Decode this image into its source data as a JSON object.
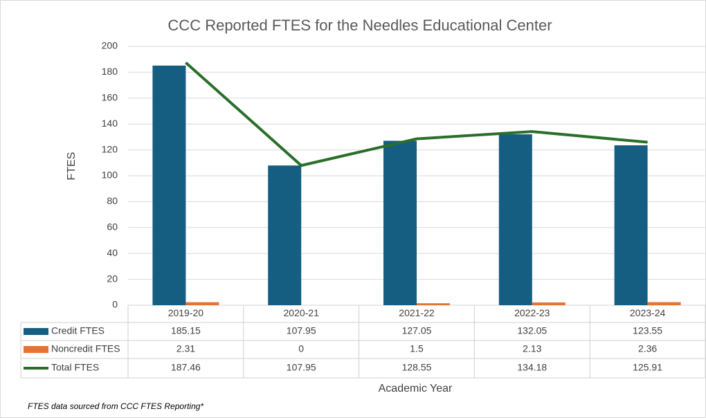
{
  "chart_data": {
    "type": "bar",
    "title": "CCC Reported FTES for the Needles Educational Center",
    "x_label": "Academic Year",
    "y_label": "FTES",
    "footnote": "FTES data sourced from CCC FTES Reporting*",
    "categories": [
      "2019-20",
      "2020-21",
      "2021-22",
      "2022-23",
      "2023-24"
    ],
    "series": [
      {
        "name": "Credit FTES",
        "color": "#155e82",
        "type": "bar",
        "values": [
          185.15,
          107.95,
          127.05,
          132.05,
          123.55
        ]
      },
      {
        "name": "Noncredit FTES",
        "color": "#e97132",
        "type": "bar",
        "values": [
          2.31,
          0,
          1.5,
          2.13,
          2.36
        ]
      },
      {
        "name": "Total FTES",
        "color": "#2a6e2a",
        "type": "line",
        "values": [
          187.46,
          107.95,
          128.55,
          134.18,
          125.91
        ]
      }
    ],
    "ylim": [
      0,
      200
    ],
    "yticks": [
      0,
      20,
      40,
      60,
      80,
      100,
      120,
      140,
      160,
      180,
      200
    ],
    "grid": true,
    "data_table": true
  }
}
